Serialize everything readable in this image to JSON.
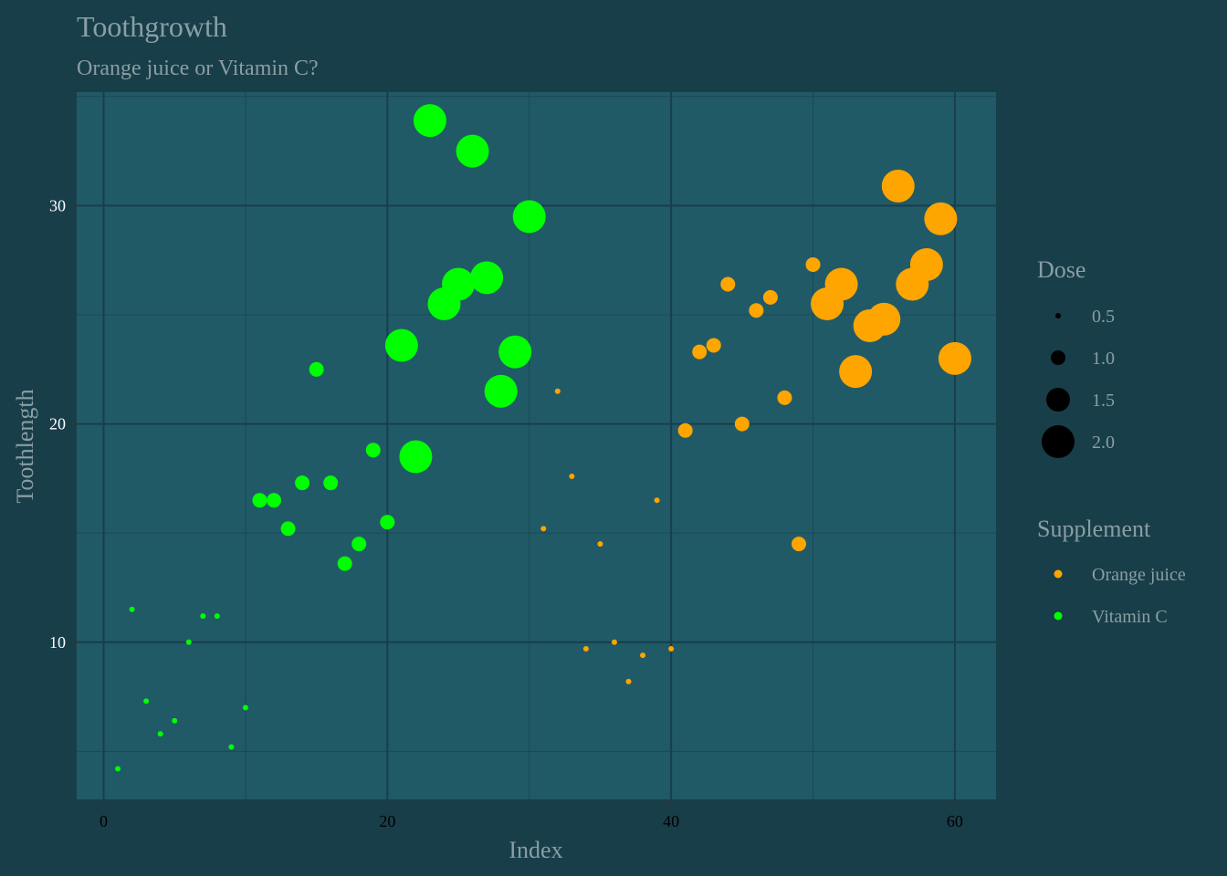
{
  "chart_data": {
    "type": "scatter",
    "title": "Toothgrowth",
    "subtitle": "Orange juice or Vitamin C?",
    "xlabel": "Index",
    "ylabel": "Toothlength",
    "xlim": [
      -1.9,
      62.9
    ],
    "ylim": [
      2.8,
      35.2
    ],
    "x_ticks": [
      0,
      20,
      40,
      60
    ],
    "y_ticks": [
      10,
      20,
      30
    ],
    "grid": true,
    "legend_position": "right",
    "colors": {
      "background": "#183e4a",
      "panel": "#215a67",
      "grid_major": "#183e4a",
      "grid_minor": "#1b4955",
      "Orange juice": "#ffa500",
      "Vitamin C": "#00ff00"
    },
    "size_legend": {
      "title": "Dose",
      "entries": [
        {
          "value": 0.5,
          "label": "0.5"
        },
        {
          "value": 1.0,
          "label": "1.0"
        },
        {
          "value": 1.5,
          "label": "1.5"
        },
        {
          "value": 2.0,
          "label": "2.0"
        }
      ]
    },
    "color_legend": {
      "title": "Supplement",
      "entries": [
        {
          "name": "Orange juice",
          "label": "Orange juice"
        },
        {
          "name": "Vitamin C",
          "label": "Vitamin C"
        }
      ]
    },
    "series": [
      {
        "name": "Vitamin C",
        "points": [
          {
            "x": 1,
            "y": 4.2,
            "dose": 0.5
          },
          {
            "x": 2,
            "y": 11.5,
            "dose": 0.5
          },
          {
            "x": 3,
            "y": 7.3,
            "dose": 0.5
          },
          {
            "x": 4,
            "y": 5.8,
            "dose": 0.5
          },
          {
            "x": 5,
            "y": 6.4,
            "dose": 0.5
          },
          {
            "x": 6,
            "y": 10.0,
            "dose": 0.5
          },
          {
            "x": 7,
            "y": 11.2,
            "dose": 0.5
          },
          {
            "x": 8,
            "y": 11.2,
            "dose": 0.5
          },
          {
            "x": 9,
            "y": 5.2,
            "dose": 0.5
          },
          {
            "x": 10,
            "y": 7.0,
            "dose": 0.5
          },
          {
            "x": 11,
            "y": 16.5,
            "dose": 1.0
          },
          {
            "x": 12,
            "y": 16.5,
            "dose": 1.0
          },
          {
            "x": 13,
            "y": 15.2,
            "dose": 1.0
          },
          {
            "x": 14,
            "y": 17.3,
            "dose": 1.0
          },
          {
            "x": 15,
            "y": 22.5,
            "dose": 1.0
          },
          {
            "x": 16,
            "y": 17.3,
            "dose": 1.0
          },
          {
            "x": 17,
            "y": 13.6,
            "dose": 1.0
          },
          {
            "x": 18,
            "y": 14.5,
            "dose": 1.0
          },
          {
            "x": 19,
            "y": 18.8,
            "dose": 1.0
          },
          {
            "x": 20,
            "y": 15.5,
            "dose": 1.0
          },
          {
            "x": 21,
            "y": 23.6,
            "dose": 2.0
          },
          {
            "x": 22,
            "y": 18.5,
            "dose": 2.0
          },
          {
            "x": 23,
            "y": 33.9,
            "dose": 2.0
          },
          {
            "x": 24,
            "y": 25.5,
            "dose": 2.0
          },
          {
            "x": 25,
            "y": 26.4,
            "dose": 2.0
          },
          {
            "x": 26,
            "y": 32.5,
            "dose": 2.0
          },
          {
            "x": 27,
            "y": 26.7,
            "dose": 2.0
          },
          {
            "x": 28,
            "y": 21.5,
            "dose": 2.0
          },
          {
            "x": 29,
            "y": 23.3,
            "dose": 2.0
          },
          {
            "x": 30,
            "y": 29.5,
            "dose": 2.0
          }
        ]
      },
      {
        "name": "Orange juice",
        "points": [
          {
            "x": 31,
            "y": 15.2,
            "dose": 0.5
          },
          {
            "x": 32,
            "y": 21.5,
            "dose": 0.5
          },
          {
            "x": 33,
            "y": 17.6,
            "dose": 0.5
          },
          {
            "x": 34,
            "y": 9.7,
            "dose": 0.5
          },
          {
            "x": 35,
            "y": 14.5,
            "dose": 0.5
          },
          {
            "x": 36,
            "y": 10.0,
            "dose": 0.5
          },
          {
            "x": 37,
            "y": 8.2,
            "dose": 0.5
          },
          {
            "x": 38,
            "y": 9.4,
            "dose": 0.5
          },
          {
            "x": 39,
            "y": 16.5,
            "dose": 0.5
          },
          {
            "x": 40,
            "y": 9.7,
            "dose": 0.5
          },
          {
            "x": 41,
            "y": 19.7,
            "dose": 1.0
          },
          {
            "x": 42,
            "y": 23.3,
            "dose": 1.0
          },
          {
            "x": 43,
            "y": 23.6,
            "dose": 1.0
          },
          {
            "x": 44,
            "y": 26.4,
            "dose": 1.0
          },
          {
            "x": 45,
            "y": 20.0,
            "dose": 1.0
          },
          {
            "x": 46,
            "y": 25.2,
            "dose": 1.0
          },
          {
            "x": 47,
            "y": 25.8,
            "dose": 1.0
          },
          {
            "x": 48,
            "y": 21.2,
            "dose": 1.0
          },
          {
            "x": 49,
            "y": 14.5,
            "dose": 1.0
          },
          {
            "x": 50,
            "y": 27.3,
            "dose": 1.0
          },
          {
            "x": 51,
            "y": 25.5,
            "dose": 2.0
          },
          {
            "x": 52,
            "y": 26.4,
            "dose": 2.0
          },
          {
            "x": 53,
            "y": 22.4,
            "dose": 2.0
          },
          {
            "x": 54,
            "y": 24.5,
            "dose": 2.0
          },
          {
            "x": 55,
            "y": 24.8,
            "dose": 2.0
          },
          {
            "x": 56,
            "y": 30.9,
            "dose": 2.0
          },
          {
            "x": 57,
            "y": 26.4,
            "dose": 2.0
          },
          {
            "x": 58,
            "y": 27.3,
            "dose": 2.0
          },
          {
            "x": 59,
            "y": 29.4,
            "dose": 2.0
          },
          {
            "x": 60,
            "y": 23.0,
            "dose": 2.0
          }
        ]
      }
    ]
  }
}
